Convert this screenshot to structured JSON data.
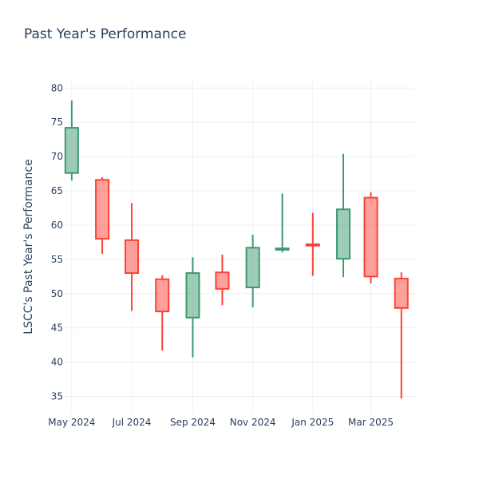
{
  "chart_data": {
    "type": "candlestick",
    "title": "Past Year's Performance",
    "ylabel": "LSCC's Past Year's Performance",
    "xlabel": "",
    "ylim": [
      32.5,
      81.2
    ],
    "yticks": [
      35,
      40,
      45,
      50,
      55,
      60,
      65,
      70,
      75,
      80
    ],
    "x_range": [
      "2024-04-23",
      "2025-04-15"
    ],
    "xticks": [
      {
        "date": "2024-05-01",
        "label": "May 2024"
      },
      {
        "date": "2024-07-01",
        "label": "Jul 2024"
      },
      {
        "date": "2024-09-01",
        "label": "Sep 2024"
      },
      {
        "date": "2024-11-01",
        "label": "Nov 2024"
      },
      {
        "date": "2025-01-01",
        "label": "Jan 2025"
      },
      {
        "date": "2025-03-01",
        "label": "Mar 2025"
      }
    ],
    "grid": true,
    "colors": {
      "increasing": "#3d9970",
      "decreasing": "#ff4136",
      "grid": "#ebf0f8",
      "text": "#2a3f5f"
    },
    "candles": [
      {
        "date": "2024-05-01",
        "open": 67.6,
        "high": 78.2,
        "low": 66.5,
        "close": 74.2
      },
      {
        "date": "2024-06-01",
        "open": 66.6,
        "high": 67.0,
        "low": 55.8,
        "close": 58.0
      },
      {
        "date": "2024-07-01",
        "open": 57.8,
        "high": 63.2,
        "low": 47.5,
        "close": 53.0
      },
      {
        "date": "2024-08-01",
        "open": 52.1,
        "high": 52.7,
        "low": 41.7,
        "close": 47.4
      },
      {
        "date": "2024-09-01",
        "open": 46.5,
        "high": 55.3,
        "low": 40.7,
        "close": 53.0
      },
      {
        "date": "2024-10-01",
        "open": 53.1,
        "high": 55.7,
        "low": 48.3,
        "close": 50.7
      },
      {
        "date": "2024-11-01",
        "open": 50.9,
        "high": 58.6,
        "low": 48.0,
        "close": 56.7
      },
      {
        "date": "2024-12-01",
        "open": 56.4,
        "high": 64.6,
        "low": 56.0,
        "close": 56.6
      },
      {
        "date": "2025-01-01",
        "open": 57.2,
        "high": 61.8,
        "low": 52.6,
        "close": 57.0
      },
      {
        "date": "2025-02-01",
        "open": 55.1,
        "high": 70.4,
        "low": 52.4,
        "close": 62.3
      },
      {
        "date": "2025-03-01",
        "open": 64.0,
        "high": 64.8,
        "low": 51.5,
        "close": 52.5
      },
      {
        "date": "2025-04-01",
        "open": 52.2,
        "high": 53.1,
        "low": 34.7,
        "close": 47.9
      }
    ]
  }
}
